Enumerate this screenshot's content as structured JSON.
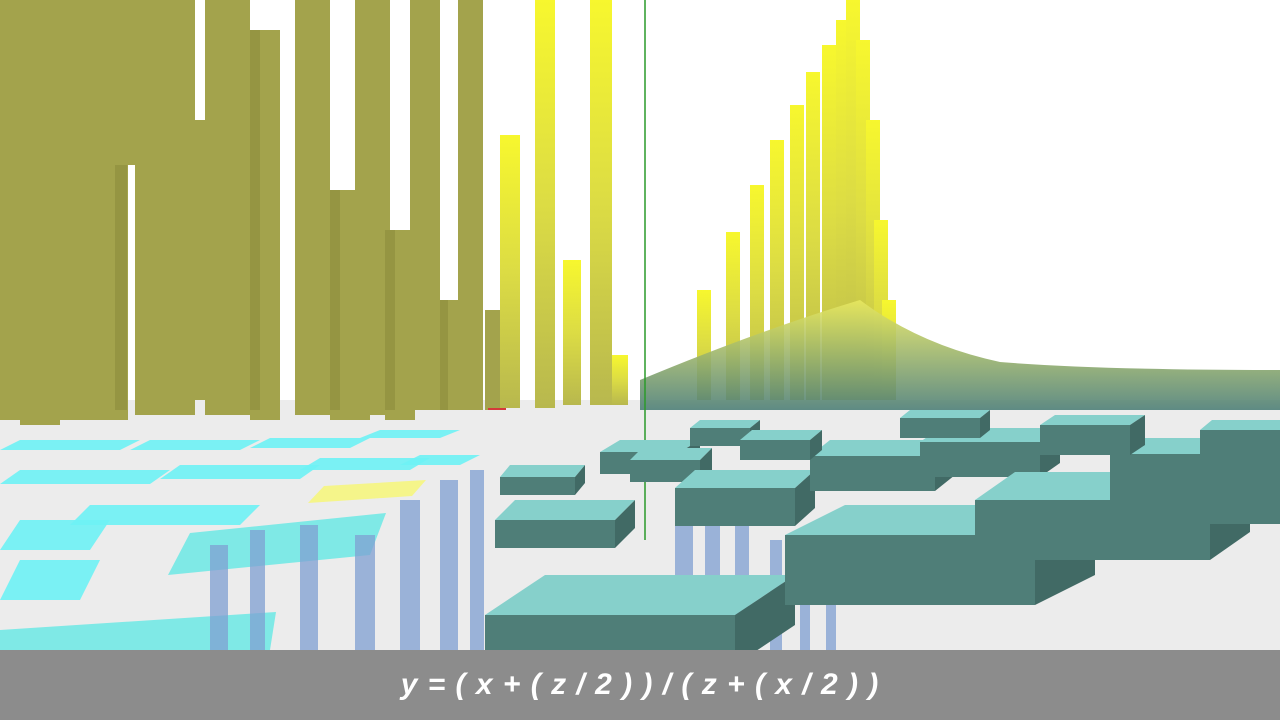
{
  "caption": {
    "formula": "y = ( x + ( z / 2 ) ) / ( z + ( x / 2 ) )"
  },
  "colors": {
    "caption_bar": "#8c8c8c",
    "caption_text": "#ffffff",
    "olive_column": "#a3a34c",
    "bright_yellow_column": "#f2f23a",
    "teal_block_top": "#86d0cb",
    "teal_block_side": "#4f7e78",
    "cyan_tile": "#6ef2f5",
    "yellow_tile": "#f5f58a",
    "blue_reflection": "#7f9fd2",
    "floor": "#ececec",
    "y_axis_line": "#2a9a2a",
    "x_axis_line": "#d43a3a"
  },
  "visualization": {
    "kind": "3d-bar-surface",
    "axes_visible": [
      "x",
      "y"
    ]
  }
}
